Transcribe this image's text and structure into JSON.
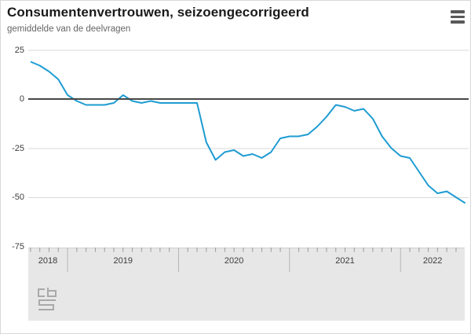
{
  "header": {
    "title": "Consumentenvertrouwen, seizoengecorrigeerd",
    "subtitle": "gemiddelde van de deelvragen",
    "menu_icon": "hamburger-menu-icon"
  },
  "footer": {
    "logo_icon": "cbs-logo"
  },
  "colors": {
    "series_line": "#1e9cd2",
    "zero_line": "#474747",
    "gridline": "#d9d9d9",
    "axis_band_background": "#e7e7e7",
    "tick": "#9a9a9a",
    "year_separator": "#b5b5b5",
    "text_dark": "#1a1a1a",
    "text_gray": "#666666"
  },
  "chart_data": {
    "type": "line",
    "title": "Consumentenvertrouwen, seizoengecorrigeerd",
    "subtitle": "gemiddelde van de deelvragen",
    "grid": "horizontal",
    "legend": "none",
    "ylim": [
      -75,
      25
    ],
    "yticks": [
      25,
      0,
      -25,
      -50,
      -75
    ],
    "year_labels": [
      "2018",
      "2019",
      "2020",
      "2021",
      "2022"
    ],
    "x": [
      "2018-09",
      "2018-10",
      "2018-11",
      "2018-12",
      "2019-01",
      "2019-02",
      "2019-03",
      "2019-04",
      "2019-05",
      "2019-06",
      "2019-07",
      "2019-08",
      "2019-09",
      "2019-10",
      "2019-11",
      "2019-12",
      "2020-01",
      "2020-02",
      "2020-03",
      "2020-04",
      "2020-05",
      "2020-06",
      "2020-07",
      "2020-08",
      "2020-09",
      "2020-10",
      "2020-11",
      "2020-12",
      "2021-01",
      "2021-02",
      "2021-03",
      "2021-04",
      "2021-05",
      "2021-06",
      "2021-07",
      "2021-08",
      "2021-09",
      "2021-10",
      "2021-11",
      "2021-12",
      "2022-01",
      "2022-02",
      "2022-03",
      "2022-04",
      "2022-05",
      "2022-06",
      "2022-07",
      "2022-08"
    ],
    "values": [
      19,
      17,
      14,
      10,
      2,
      -1,
      -3,
      -3,
      -3,
      -2,
      2,
      -1,
      -2,
      -1,
      -2,
      -2,
      -2,
      -2,
      -2,
      -22,
      -31,
      -27,
      -26,
      -29,
      -28,
      -30,
      -27,
      -20,
      -19,
      -19,
      -18,
      -14,
      -9,
      -3,
      -4,
      -6,
      -5,
      -10,
      -19,
      -25,
      -29,
      -30,
      -37,
      -44,
      -48,
      -47,
      -50,
      -53
    ]
  }
}
